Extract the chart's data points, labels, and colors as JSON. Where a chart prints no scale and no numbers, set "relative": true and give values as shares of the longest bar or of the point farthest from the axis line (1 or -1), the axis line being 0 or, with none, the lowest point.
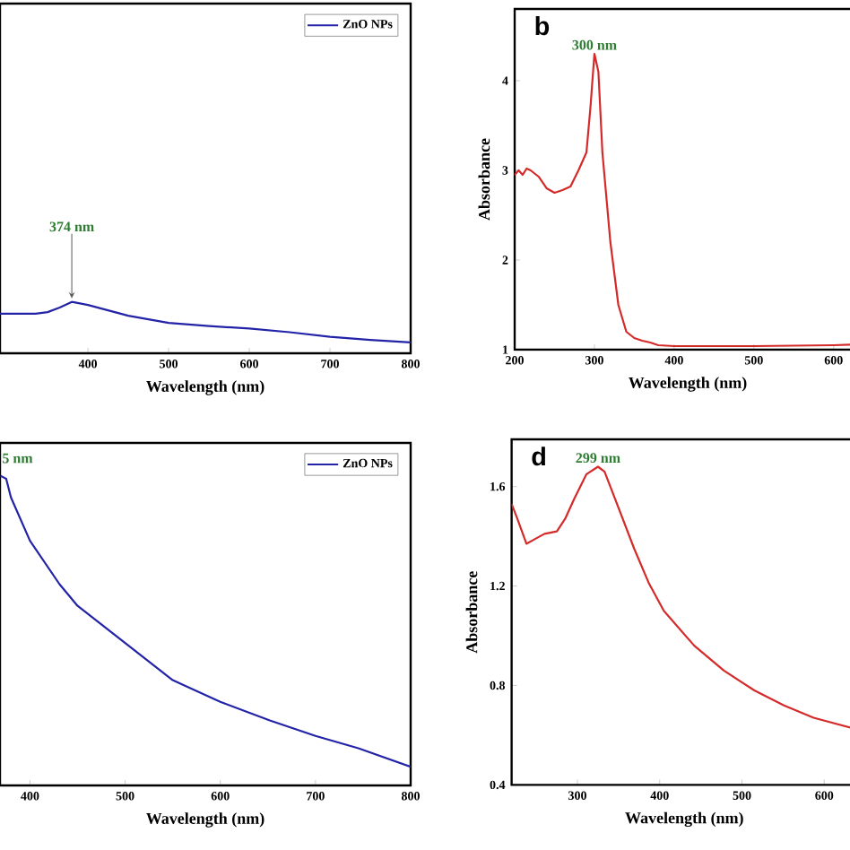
{
  "chart_data": [
    {
      "type": "line",
      "relative": true,
      "xlabel": "Wavelength (nm)",
      "xlim": [
        291,
        800
      ],
      "xticks": [
        400,
        500,
        600,
        700,
        800
      ],
      "legend": "top right",
      "x": [
        291,
        335,
        350,
        365,
        380,
        400,
        450,
        500,
        550,
        600,
        650,
        700,
        750,
        800
      ],
      "series": [
        {
          "name": "ZnO NPs",
          "color": "#2323a8",
          "values": [
            0.77,
            0.77,
            0.8,
            0.89,
            1.0,
            0.94,
            0.73,
            0.59,
            0.53,
            0.48,
            0.41,
            0.32,
            0.26,
            0.21
          ]
        }
      ],
      "annotations": [
        {
          "text": "374 nm",
          "x": 380,
          "y": 1.0
        }
      ]
    },
    {
      "type": "line",
      "xlabel": "Wavelength (nm)",
      "ylabel": "Absorbance",
      "xlim": [
        200,
        634
      ],
      "ylim": [
        1,
        4.8
      ],
      "xticks": [
        200,
        300,
        400,
        500,
        600
      ],
      "yticks": [
        1,
        2,
        3,
        4
      ],
      "x": [
        200,
        205,
        210,
        215,
        220,
        230,
        240,
        250,
        260,
        270,
        280,
        290,
        295,
        300,
        305,
        310,
        320,
        330,
        340,
        350,
        360,
        370,
        380,
        400,
        500,
        600,
        634
      ],
      "series": [
        {
          "color": "#d42a2a",
          "values": [
            2.95,
            3.0,
            2.95,
            3.02,
            3.0,
            2.93,
            2.8,
            2.75,
            2.78,
            2.82,
            3.0,
            3.2,
            3.7,
            4.3,
            4.1,
            3.2,
            2.2,
            1.5,
            1.2,
            1.13,
            1.1,
            1.08,
            1.05,
            1.04,
            1.04,
            1.05,
            1.06
          ]
        }
      ],
      "annotations": [
        {
          "text": "300 nm",
          "x": 300,
          "y": 4.3
        },
        "b"
      ]
    },
    {
      "type": "line",
      "relative": true,
      "xlabel": "Wavelength (nm)",
      "xlim": [
        368.5,
        800
      ],
      "xticks": [
        400,
        500,
        600,
        700,
        800
      ],
      "legend": "top right",
      "x": [
        369,
        375,
        380,
        400,
        431,
        450,
        500,
        550,
        600,
        652,
        700,
        745,
        800
      ],
      "series": [
        {
          "name": "ZnO NPs",
          "color": "#2323a8",
          "values": [
            1.0,
            0.99,
            0.93,
            0.79,
            0.65,
            0.58,
            0.46,
            0.34,
            0.27,
            0.21,
            0.16,
            0.12,
            0.06
          ]
        }
      ],
      "annotations": [
        "5 nm"
      ]
    },
    {
      "type": "line",
      "xlabel": "Wavelength (nm)",
      "ylabel": "Absorbance",
      "xlim": [
        220,
        640
      ],
      "ylim": [
        0.4,
        1.79
      ],
      "xticks": [
        300,
        400,
        500,
        600
      ],
      "yticks": [
        0.4,
        0.8,
        1.2,
        1.6
      ],
      "x": [
        220,
        227,
        238,
        249,
        260,
        275,
        285,
        296,
        311,
        325,
        333,
        347,
        369,
        387,
        405,
        442,
        478,
        515,
        551,
        587,
        632
      ],
      "series": [
        {
          "color": "#d42a2a",
          "values": [
            1.53,
            1.47,
            1.37,
            1.39,
            1.41,
            1.42,
            1.47,
            1.55,
            1.65,
            1.68,
            1.66,
            1.54,
            1.35,
            1.21,
            1.1,
            0.96,
            0.86,
            0.78,
            0.72,
            0.67,
            0.63
          ]
        }
      ],
      "annotations": [
        {
          "text": "299 nm",
          "x": 325,
          "y": 1.68
        },
        "d"
      ]
    }
  ]
}
